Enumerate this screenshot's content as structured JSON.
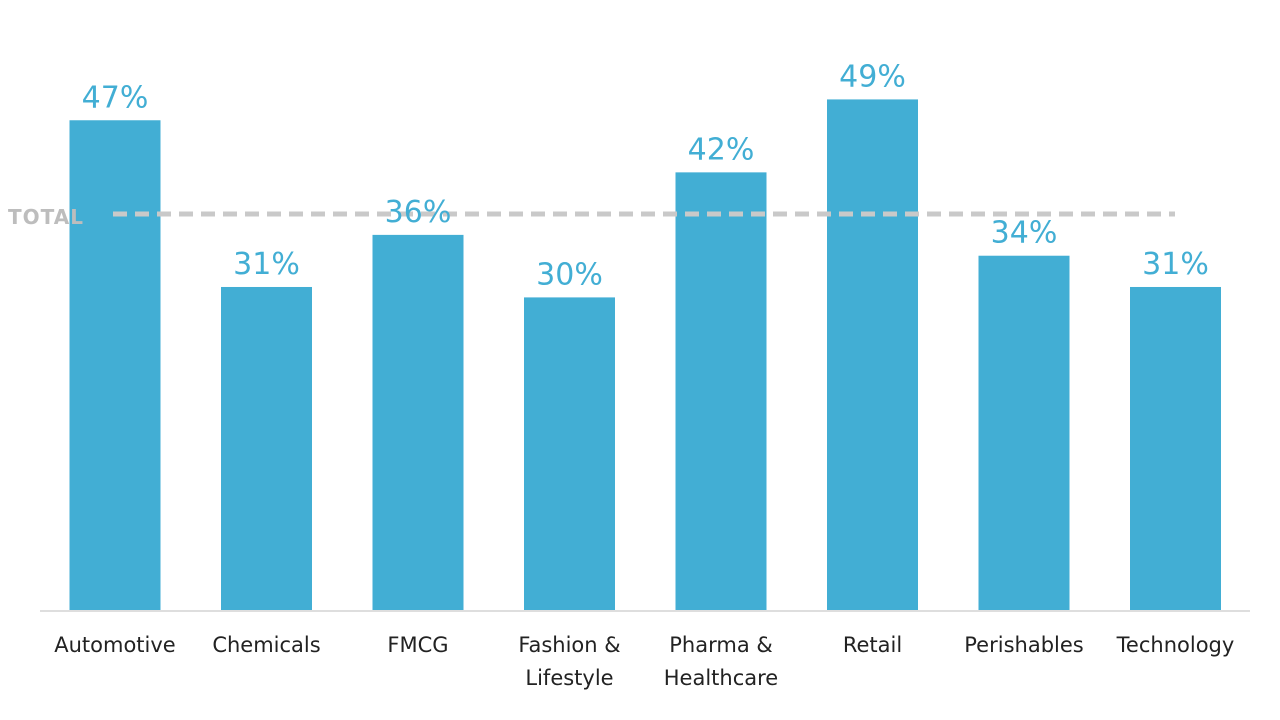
{
  "chart_data": {
    "type": "bar",
    "categories": [
      [
        "Automotive"
      ],
      [
        "Chemicals"
      ],
      [
        "FMCG"
      ],
      [
        "Fashion &",
        "Lifestyle"
      ],
      [
        "Pharma &",
        "Healthcare"
      ],
      [
        "Retail"
      ],
      [
        "Perishables"
      ],
      [
        "Technology"
      ]
    ],
    "values": [
      47,
      31,
      36,
      30,
      42,
      49,
      34,
      31
    ],
    "value_labels": [
      "47%",
      "31%",
      "36%",
      "30%",
      "42%",
      "49%",
      "34%",
      "31%"
    ],
    "value_unit": "%",
    "reference_line": {
      "label": "TOTAL",
      "value": 38,
      "style": "dashed",
      "color": "#c9c9c9"
    },
    "bar_color": "#42aed4",
    "label_color": "#42aed4",
    "ylim": [
      0,
      50
    ],
    "grid": false,
    "legend": "none"
  }
}
